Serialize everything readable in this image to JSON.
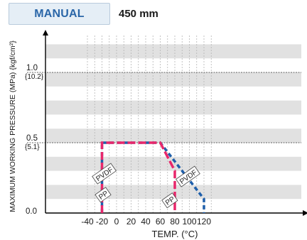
{
  "header": {
    "mode_label": "MANUAL",
    "size_label": "450 mm"
  },
  "chart_data": {
    "type": "line",
    "xlabel": "TEMP. (°C)",
    "ylabel": "MAXIMUM WORKING PRESSURE (MPa) {kgf/cm²}",
    "x_ticks": [
      -40,
      -20,
      0,
      20,
      40,
      60,
      80,
      100,
      120
    ],
    "xlim": [
      -50,
      135
    ],
    "ylim": [
      0,
      1.2
    ],
    "y_ticks": [
      {
        "value": 0.0,
        "label": "0.0",
        "sub": ""
      },
      {
        "value": 0.5,
        "label": "0.5",
        "sub": "{5.1}"
      },
      {
        "value": 1.0,
        "label": "1.0",
        "sub": "{10.2}"
      }
    ],
    "band_step": 0.1,
    "series": [
      {
        "name": "PP",
        "color": "#e8276b",
        "points": [
          [
            -20,
            0
          ],
          [
            -20,
            0.5
          ],
          [
            60,
            0.5
          ],
          [
            80,
            0.3
          ],
          [
            80,
            0
          ]
        ]
      },
      {
        "name": "PVDF",
        "color": "#1f5faa",
        "points": [
          [
            -20,
            0
          ],
          [
            -20,
            0.5
          ],
          [
            60,
            0.5
          ],
          [
            120,
            0.1
          ],
          [
            120,
            0
          ]
        ]
      }
    ],
    "annotations": [
      {
        "text": "PVDF",
        "x": -17,
        "y": 0.28
      },
      {
        "text": "PP",
        "x": -18.5,
        "y": 0.13
      },
      {
        "text": "PVDF",
        "x": 98,
        "y": 0.26
      },
      {
        "text": "PP",
        "x": 73,
        "y": 0.09
      }
    ],
    "colors": {
      "band": "#e1e1e1",
      "grid": "#9a9a9a",
      "axis": "#000000"
    }
  }
}
